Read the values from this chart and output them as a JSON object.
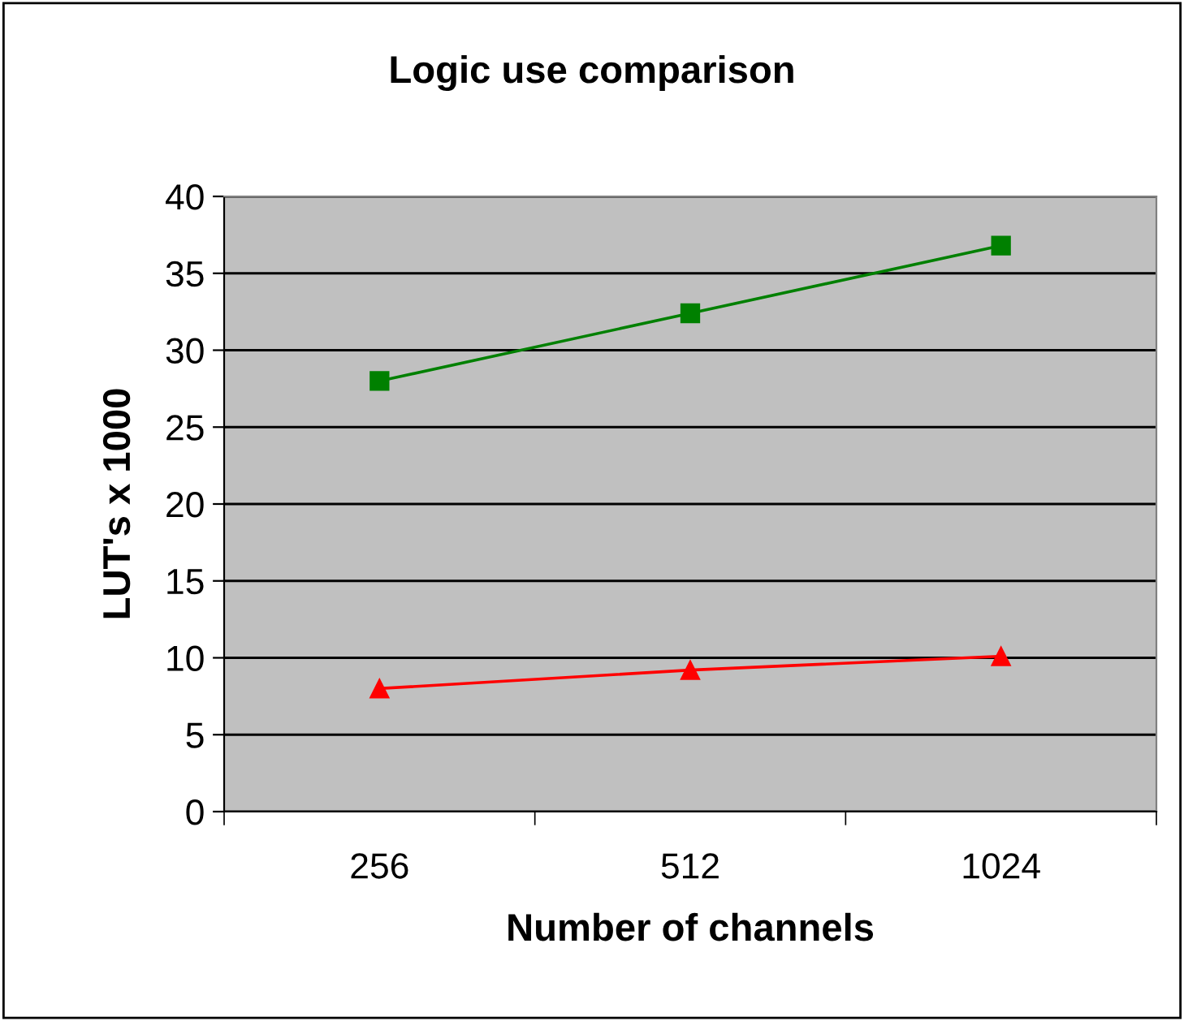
{
  "chart_data": {
    "type": "line",
    "title": "Logic use comparison",
    "xlabel": "Number of channels",
    "ylabel": "LUT's x 1000",
    "categories": [
      "256",
      "512",
      "1024"
    ],
    "series": [
      {
        "color": "#008000",
        "values": [
          28.0,
          32.4,
          36.8
        ],
        "marker": "square"
      },
      {
        "color": "#ff0000",
        "values": [
          8.0,
          9.2,
          10.1
        ],
        "marker": "triangle"
      }
    ],
    "ylim": [
      0,
      40
    ],
    "yticks": [
      0,
      5,
      10,
      15,
      20,
      25,
      30,
      35,
      40
    ],
    "grid": "y"
  }
}
